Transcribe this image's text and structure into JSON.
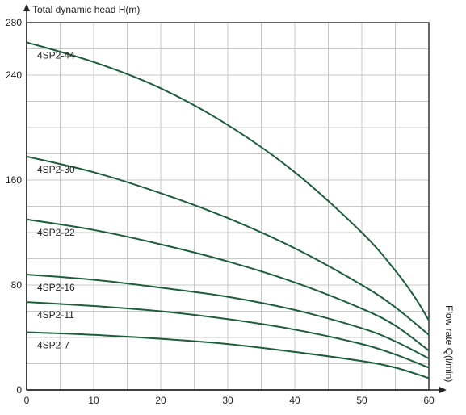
{
  "chart_data": {
    "type": "line",
    "ylabel": "Total dynamic head H(m)",
    "xlabel": "Flow rate Q(l/min)",
    "xlim": [
      0,
      60
    ],
    "ylim": [
      0,
      280
    ],
    "x_ticks": [
      0,
      10,
      20,
      30,
      40,
      50,
      60
    ],
    "y_ticks": [
      0,
      80,
      160,
      240,
      280
    ],
    "grid": true,
    "line_color": "#1b5e3a",
    "series": [
      {
        "name": "4SP2-44",
        "x": [
          0,
          10,
          20,
          30,
          40,
          50,
          55,
          58,
          60
        ],
        "y": [
          265,
          250,
          230,
          202,
          166,
          120,
          91,
          70,
          53
        ]
      },
      {
        "name": "4SP2-30",
        "x": [
          0,
          10,
          20,
          30,
          40,
          50,
          55,
          60
        ],
        "y": [
          178,
          166,
          150,
          131,
          108,
          80,
          63,
          42
        ]
      },
      {
        "name": "4SP2-22",
        "x": [
          0,
          10,
          20,
          30,
          40,
          50,
          55,
          60
        ],
        "y": [
          130,
          122,
          111,
          98,
          82,
          62,
          49,
          30
        ]
      },
      {
        "name": "4SP2-16",
        "x": [
          0,
          10,
          20,
          30,
          40,
          50,
          55,
          60
        ],
        "y": [
          88,
          84,
          78,
          71,
          61,
          47,
          37,
          24
        ]
      },
      {
        "name": "4SP2-11",
        "x": [
          0,
          10,
          20,
          30,
          40,
          50,
          55,
          60
        ],
        "y": [
          67,
          64,
          60,
          54,
          46,
          35,
          27,
          17
        ]
      },
      {
        "name": "4SP2-7",
        "x": [
          0,
          10,
          20,
          30,
          40,
          50,
          55,
          60
        ],
        "y": [
          44,
          42,
          39,
          35,
          29,
          22,
          17,
          9
        ]
      }
    ]
  }
}
